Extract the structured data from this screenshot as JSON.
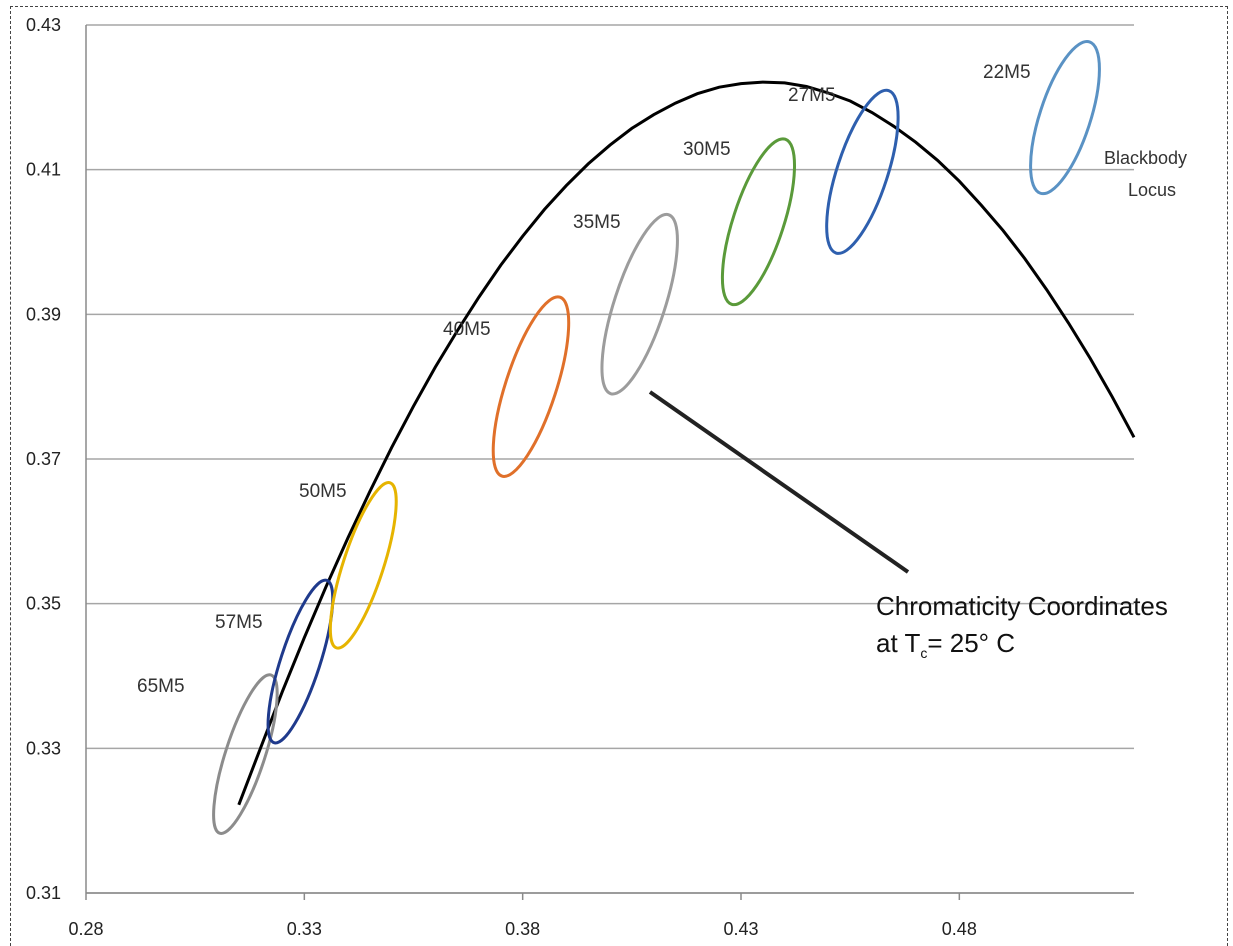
{
  "chart_data": {
    "type": "scatter",
    "title": "",
    "xlabel": "",
    "ylabel": "",
    "xlim": [
      0.28,
      0.52
    ],
    "ylim": [
      0.31,
      0.43
    ],
    "x_ticks": [
      "0.28",
      "0.33",
      "0.38",
      "0.43",
      "0.48"
    ],
    "y_ticks": [
      "0.43",
      "0.41",
      "0.39",
      "0.37",
      "0.35",
      "0.33",
      "0.31"
    ],
    "grid": "horizontal",
    "locus": {
      "name_line1": "Blackbody",
      "name_line2": "Locus",
      "color": "#000000",
      "points": [
        [
          0.315,
          0.3222
        ],
        [
          0.32,
          0.3301
        ],
        [
          0.325,
          0.3379
        ],
        [
          0.33,
          0.3453
        ],
        [
          0.335,
          0.3524
        ],
        [
          0.34,
          0.3591
        ],
        [
          0.345,
          0.3655
        ],
        [
          0.35,
          0.3716
        ],
        [
          0.355,
          0.3773
        ],
        [
          0.36,
          0.3827
        ],
        [
          0.365,
          0.3877
        ],
        [
          0.37,
          0.3924
        ],
        [
          0.375,
          0.3968
        ],
        [
          0.38,
          0.4008
        ],
        [
          0.385,
          0.4045
        ],
        [
          0.39,
          0.4078
        ],
        [
          0.395,
          0.4108
        ],
        [
          0.4,
          0.4134
        ],
        [
          0.405,
          0.4157
        ],
        [
          0.41,
          0.4176
        ],
        [
          0.415,
          0.4192
        ],
        [
          0.42,
          0.4205
        ],
        [
          0.425,
          0.4214
        ],
        [
          0.43,
          0.4219
        ],
        [
          0.435,
          0.4221
        ],
        [
          0.44,
          0.422
        ],
        [
          0.445,
          0.4215
        ],
        [
          0.45,
          0.4206
        ],
        [
          0.455,
          0.4195
        ],
        [
          0.46,
          0.4179
        ],
        [
          0.465,
          0.416
        ],
        [
          0.47,
          0.4138
        ],
        [
          0.475,
          0.4113
        ],
        [
          0.48,
          0.4084
        ],
        [
          0.485,
          0.4051
        ],
        [
          0.49,
          0.4016
        ],
        [
          0.495,
          0.3977
        ],
        [
          0.5,
          0.3934
        ],
        [
          0.505,
          0.3888
        ],
        [
          0.51,
          0.3839
        ],
        [
          0.515,
          0.3786
        ],
        [
          0.52,
          0.373
        ]
      ]
    },
    "ellipses": [
      {
        "label": "65M5",
        "cx": 0.3165,
        "cy": 0.3292,
        "rx": 0.0045,
        "ry": 0.0115,
        "color": "#8c8c8c"
      },
      {
        "label": "57M5",
        "cx": 0.3291,
        "cy": 0.342,
        "rx": 0.0045,
        "ry": 0.0118,
        "color": "#1f3a8c"
      },
      {
        "label": "50M5",
        "cx": 0.3435,
        "cy": 0.3553,
        "rx": 0.0046,
        "ry": 0.012,
        "color": "#e6b400"
      },
      {
        "label": "40M5",
        "cx": 0.3819,
        "cy": 0.38,
        "rx": 0.0058,
        "ry": 0.013,
        "color": "#e0702a"
      },
      {
        "label": "35M5",
        "cx": 0.4068,
        "cy": 0.3914,
        "rx": 0.0058,
        "ry": 0.013,
        "color": "#9c9c9c"
      },
      {
        "label": "30M5",
        "cx": 0.434,
        "cy": 0.4028,
        "rx": 0.0058,
        "ry": 0.012,
        "color": "#5a9a3a"
      },
      {
        "label": "27M5",
        "cx": 0.4578,
        "cy": 0.4097,
        "rx": 0.0058,
        "ry": 0.0118,
        "color": "#2e5fae"
      },
      {
        "label": "22M5",
        "cx": 0.5042,
        "cy": 0.4172,
        "rx": 0.0058,
        "ry": 0.011,
        "color": "#5a92c4"
      }
    ],
    "annotation": {
      "line1": "Chromaticity Coordinates",
      "line2_prefix": "at T",
      "line2_sub": "c",
      "line2_suffix": "= 25° C"
    }
  }
}
